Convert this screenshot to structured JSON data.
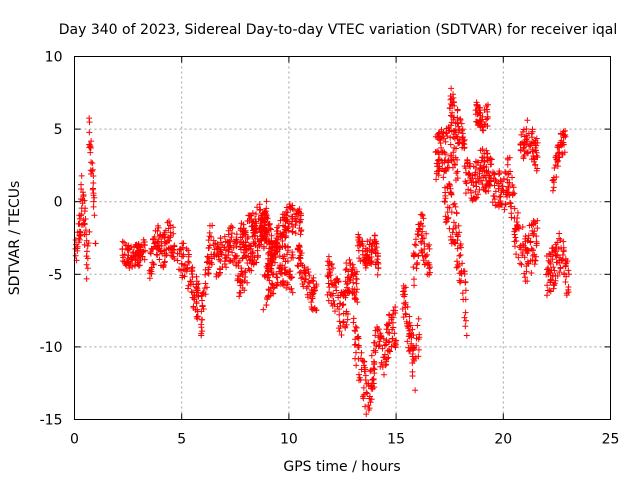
{
  "chart_data": {
    "type": "scatter",
    "title": "Day 340 of 2023, Sidereal Day-to-day VTEC variation (SDTVAR) for receiver iqal",
    "xlabel": "GPS time / hours",
    "ylabel": "SDTVAR / TECUs",
    "xlim": [
      0,
      25
    ],
    "ylim": [
      -15,
      10
    ],
    "xticks": [
      0,
      5,
      10,
      15,
      20,
      25
    ],
    "yticks": [
      -15,
      -10,
      -5,
      0,
      5,
      10
    ],
    "xtick_labels": [
      "0",
      "5",
      "10",
      "15",
      "20",
      "25"
    ],
    "ytick_labels": [
      "-15",
      "-10",
      "-5",
      "0",
      "5",
      "10"
    ],
    "grid": true,
    "marker": "+",
    "color": "#ff0000",
    "segments": [
      {
        "x0": 0.0,
        "x1": 0.35,
        "path": [
          [
            0.0,
            -2.8
          ],
          [
            0.1,
            -3.8
          ],
          [
            0.2,
            -2.0
          ],
          [
            0.35,
            -1.5
          ]
        ],
        "spread": 1.0
      },
      {
        "x0": 0.3,
        "x1": 0.7,
        "path": [
          [
            0.3,
            0.8
          ],
          [
            0.45,
            -1.0
          ],
          [
            0.55,
            -3.0
          ],
          [
            0.6,
            -5.2
          ],
          [
            0.7,
            -2.0
          ]
        ],
        "spread": 1.6
      },
      {
        "x0": 0.65,
        "x1": 1.0,
        "path": [
          [
            0.65,
            5.5
          ],
          [
            0.75,
            3.5
          ],
          [
            0.85,
            1.5
          ],
          [
            0.95,
            -1.0
          ],
          [
            1.0,
            -4.0
          ]
        ],
        "spread": 1.2
      },
      {
        "x0": 2.2,
        "x1": 3.3,
        "path": [
          [
            2.2,
            -3.5
          ],
          [
            2.6,
            -3.8
          ],
          [
            3.0,
            -3.7
          ],
          [
            3.3,
            -3.2
          ]
        ],
        "spread": 0.8
      },
      {
        "x0": 3.5,
        "x1": 4.7,
        "path": [
          [
            3.5,
            -4.5
          ],
          [
            3.8,
            -2.5
          ],
          [
            4.1,
            -3.5
          ],
          [
            4.4,
            -2.2
          ],
          [
            4.7,
            -3.2
          ]
        ],
        "spread": 1.2
      },
      {
        "x0": 4.8,
        "x1": 5.8,
        "path": [
          [
            4.8,
            -3.5
          ],
          [
            5.2,
            -4.2
          ],
          [
            5.5,
            -5.8
          ],
          [
            5.8,
            -7.0
          ]
        ],
        "spread": 1.4
      },
      {
        "x0": 5.9,
        "x1": 6.6,
        "path": [
          [
            5.9,
            -8.0
          ],
          [
            6.1,
            -6.0
          ],
          [
            6.3,
            -3.0
          ],
          [
            6.6,
            -2.5
          ]
        ],
        "spread": 1.5
      },
      {
        "x0": 6.6,
        "x1": 7.6,
        "path": [
          [
            6.6,
            -4.0
          ],
          [
            7.0,
            -3.5
          ],
          [
            7.3,
            -2.8
          ],
          [
            7.6,
            -3.5
          ]
        ],
        "spread": 1.3
      },
      {
        "x0": 7.6,
        "x1": 9.0,
        "path": [
          [
            7.6,
            -5.5
          ],
          [
            8.0,
            -4.5
          ],
          [
            8.4,
            -3.0
          ],
          [
            8.8,
            -2.0
          ],
          [
            9.0,
            -1.0
          ]
        ],
        "spread": 1.4
      },
      {
        "x0": 7.7,
        "x1": 9.2,
        "path": [
          [
            7.7,
            -2.5
          ],
          [
            8.2,
            -1.8
          ],
          [
            8.6,
            -1.0
          ],
          [
            9.2,
            -2.5
          ]
        ],
        "spread": 1.0
      },
      {
        "x0": 8.8,
        "x1": 10.2,
        "path": [
          [
            8.8,
            -6.0
          ],
          [
            9.2,
            -5.0
          ],
          [
            9.6,
            -4.2
          ],
          [
            10.2,
            -4.8
          ]
        ],
        "spread": 1.5
      },
      {
        "x0": 9.0,
        "x1": 10.6,
        "path": [
          [
            9.0,
            -4.5
          ],
          [
            9.5,
            -2.5
          ],
          [
            10.0,
            -1.0
          ],
          [
            10.6,
            -1.5
          ]
        ],
        "spread": 1.0
      },
      {
        "x0": 10.4,
        "x1": 11.3,
        "path": [
          [
            10.4,
            -3.5
          ],
          [
            10.8,
            -5.5
          ],
          [
            11.0,
            -6.2
          ],
          [
            11.3,
            -6.5
          ]
        ],
        "spread": 1.2
      },
      {
        "x0": 11.8,
        "x1": 12.8,
        "path": [
          [
            11.8,
            -5.0
          ],
          [
            12.2,
            -6.5
          ],
          [
            12.5,
            -8.0
          ],
          [
            12.8,
            -7.0
          ]
        ],
        "spread": 1.6
      },
      {
        "x0": 12.6,
        "x1": 13.2,
        "path": [
          [
            12.6,
            -5.5
          ],
          [
            12.9,
            -5.0
          ],
          [
            13.2,
            -6.0
          ]
        ],
        "spread": 1.2
      },
      {
        "x0": 13.0,
        "x1": 14.0,
        "path": [
          [
            13.0,
            -9.0
          ],
          [
            13.4,
            -12.0
          ],
          [
            13.7,
            -13.5
          ],
          [
            14.0,
            -11.0
          ]
        ],
        "spread": 1.6
      },
      {
        "x0": 13.2,
        "x1": 14.2,
        "path": [
          [
            13.2,
            -3.0
          ],
          [
            13.6,
            -3.8
          ],
          [
            14.0,
            -3.0
          ],
          [
            14.2,
            -5.0
          ]
        ],
        "spread": 1.0
      },
      {
        "x0": 14.0,
        "x1": 15.0,
        "path": [
          [
            14.0,
            -9.5
          ],
          [
            14.4,
            -11.0
          ],
          [
            14.7,
            -9.0
          ],
          [
            15.0,
            -8.5
          ]
        ],
        "spread": 1.5
      },
      {
        "x0": 15.3,
        "x1": 16.1,
        "path": [
          [
            15.3,
            -6.0
          ],
          [
            15.6,
            -9.0
          ],
          [
            15.9,
            -11.5
          ],
          [
            16.1,
            -8.0
          ]
        ],
        "spread": 1.6
      },
      {
        "x0": 15.8,
        "x1": 16.6,
        "path": [
          [
            15.8,
            -5.0
          ],
          [
            16.0,
            -3.0
          ],
          [
            16.2,
            -2.0
          ],
          [
            16.4,
            -3.5
          ],
          [
            16.6,
            -4.5
          ]
        ],
        "spread": 1.5
      },
      {
        "x0": 16.8,
        "x1": 17.9,
        "path": [
          [
            16.8,
            3.0
          ],
          [
            17.2,
            3.5
          ],
          [
            17.5,
            4.0
          ],
          [
            17.9,
            2.5
          ]
        ],
        "spread": 1.6
      },
      {
        "x0": 17.2,
        "x1": 18.3,
        "path": [
          [
            17.2,
            1.0
          ],
          [
            17.6,
            -1.0
          ],
          [
            18.0,
            -4.0
          ],
          [
            18.3,
            -8.0
          ]
        ],
        "spread": 2.0
      },
      {
        "x0": 17.5,
        "x1": 18.2,
        "path": [
          [
            17.5,
            7.0
          ],
          [
            17.8,
            5.5
          ],
          [
            18.2,
            3.5
          ]
        ],
        "spread": 1.2
      },
      {
        "x0": 18.2,
        "x1": 19.2,
        "path": [
          [
            18.2,
            2.0
          ],
          [
            18.6,
            1.0
          ],
          [
            19.0,
            2.5
          ],
          [
            19.2,
            1.5
          ]
        ],
        "spread": 1.4
      },
      {
        "x0": 18.7,
        "x1": 19.3,
        "path": [
          [
            18.7,
            6.2
          ],
          [
            19.0,
            5.6
          ],
          [
            19.3,
            6.0
          ]
        ],
        "spread": 0.8
      },
      {
        "x0": 19.2,
        "x1": 20.2,
        "path": [
          [
            19.2,
            2.5
          ],
          [
            19.6,
            1.0
          ],
          [
            20.0,
            0.5
          ],
          [
            20.2,
            1.5
          ]
        ],
        "spread": 1.4
      },
      {
        "x0": 20.2,
        "x1": 21.6,
        "path": [
          [
            20.2,
            2.5
          ],
          [
            20.6,
            -2.0
          ],
          [
            21.0,
            -4.0
          ],
          [
            21.4,
            -3.0
          ],
          [
            21.6,
            -2.0
          ]
        ],
        "spread": 1.8
      },
      {
        "x0": 20.8,
        "x1": 21.6,
        "path": [
          [
            20.8,
            3.5
          ],
          [
            21.1,
            4.5
          ],
          [
            21.4,
            4.0
          ],
          [
            21.6,
            3.0
          ]
        ],
        "spread": 1.2
      },
      {
        "x0": 22.0,
        "x1": 23.1,
        "path": [
          [
            22.0,
            -5.0
          ],
          [
            22.4,
            -4.5
          ],
          [
            22.7,
            -3.0
          ],
          [
            23.0,
            -5.5
          ],
          [
            23.1,
            -5.0
          ]
        ],
        "spread": 1.5
      },
      {
        "x0": 22.3,
        "x1": 22.9,
        "path": [
          [
            22.3,
            1.5
          ],
          [
            22.6,
            3.5
          ],
          [
            22.9,
            4.5
          ]
        ],
        "spread": 1.0
      }
    ]
  }
}
